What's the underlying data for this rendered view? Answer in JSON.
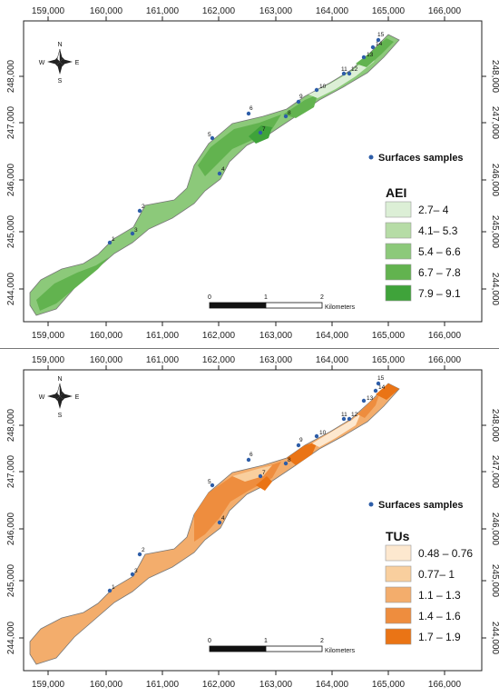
{
  "x_ticks": [
    "159,000",
    "160,000",
    "161,000",
    "162,000",
    "163,000",
    "164,000",
    "165,000",
    "166,000"
  ],
  "y_ticks": [
    "248,000",
    "247,000",
    "246,000",
    "245,000",
    "244,000"
  ],
  "compass": {
    "n": "N",
    "s": "S",
    "e": "E",
    "w": "W"
  },
  "scalebar": {
    "zero": "0",
    "one": "1",
    "two": "2",
    "unit": "Kilometers"
  },
  "samples_legend": "Surfaces samples",
  "samples": [
    "1",
    "2",
    "3",
    "4",
    "5",
    "6",
    "7",
    "8",
    "9",
    "10",
    "11",
    "12",
    "13",
    "14",
    "15"
  ],
  "panels": [
    {
      "legend_title": "AEI",
      "classes": [
        {
          "label": "2.7– 4",
          "color": "#dcefd6"
        },
        {
          "label": "4.1– 5.3",
          "color": "#b6dca6"
        },
        {
          "label": "5.4 – 6.6",
          "color": "#8cc97a"
        },
        {
          "label": "6.7 – 7.8",
          "color": "#62b34f"
        },
        {
          "label": "7.9 – 9.1",
          "color": "#3fa33a"
        }
      ]
    },
    {
      "legend_title": "TUs",
      "classes": [
        {
          "label": "0.48 – 0.76",
          "color": "#fde8cf"
        },
        {
          "label": "0.77– 1",
          "color": "#f9cf9e"
        },
        {
          "label": "1.1 – 1.3",
          "color": "#f3ad6c"
        },
        {
          "label": "1.4 – 1.6",
          "color": "#ee8d3e"
        },
        {
          "label": "1.7 – 1.9",
          "color": "#ea7415"
        }
      ]
    }
  ],
  "sample_color": "#2d5da8"
}
